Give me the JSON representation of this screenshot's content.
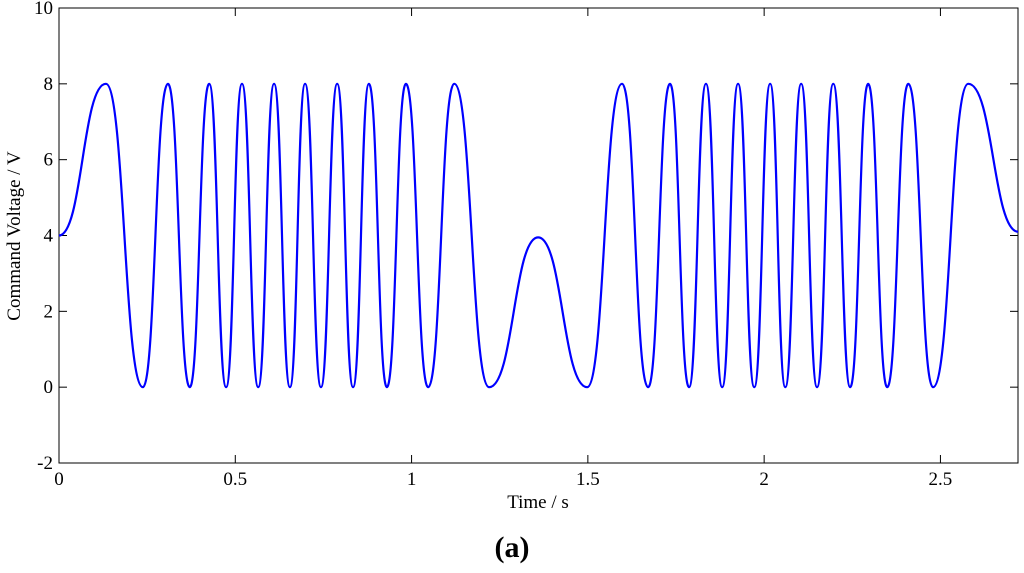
{
  "chart_data": {
    "type": "line",
    "xlabel": "Time / s",
    "ylabel": "Command Voltage / V",
    "caption": "(a)",
    "xlim": [
      0,
      2.72
    ],
    "ylim": [
      -2,
      10
    ],
    "xticks": [
      0,
      0.5,
      1,
      1.5,
      2,
      2.5
    ],
    "yticks": [
      -2,
      0,
      2,
      4,
      6,
      8,
      10
    ],
    "series": [
      {
        "color": "#0000ff",
        "x": [
          0,
          0.133,
          0.238,
          0.309,
          0.371,
          0.426,
          0.474,
          0.519,
          0.565,
          0.61,
          0.655,
          0.698,
          0.743,
          0.789,
          0.834,
          0.879,
          0.93,
          0.984,
          1.047,
          1.121,
          1.22,
          1.359,
          1.498,
          1.597,
          1.671,
          1.733,
          1.787,
          1.835,
          1.881,
          1.926,
          1.972,
          2.017,
          2.06,
          2.105,
          2.15,
          2.196,
          2.244,
          2.295,
          2.349,
          2.409,
          2.479,
          2.579,
          2.72
        ],
        "values": [
          4,
          8,
          0,
          8,
          0,
          8,
          0,
          8,
          0,
          8,
          0,
          8,
          0,
          8,
          0,
          8,
          0,
          8,
          0,
          8,
          0,
          3.95,
          0,
          8,
          0,
          8,
          0,
          8,
          0,
          8,
          0,
          8,
          0,
          8,
          0,
          8,
          0,
          8,
          0,
          8,
          0,
          8,
          4.1
        ]
      }
    ]
  }
}
